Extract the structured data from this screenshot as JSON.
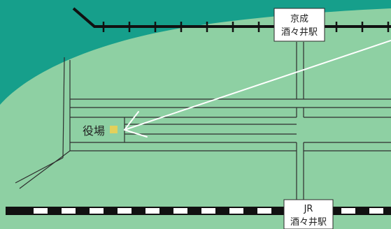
{
  "map": {
    "colors": {
      "sea": "#169f8b",
      "land": "#8ed0a3",
      "road": "#2e2e2e",
      "keisei_track": "#111111",
      "jr_track_dark": "#111111",
      "jr_track_light": "#ffffff",
      "office_marker": "#e3d05a",
      "arrow": "#ffffff"
    },
    "stations": {
      "keisei": {
        "line1": "京成",
        "line2": "酒々井駅"
      },
      "jr": {
        "line1": "JR",
        "line2": "酒々井駅"
      }
    },
    "landmark": {
      "label": "役場",
      "icon": "square-marker-icon"
    },
    "pointer": {
      "icon": "arrow-icon"
    }
  }
}
